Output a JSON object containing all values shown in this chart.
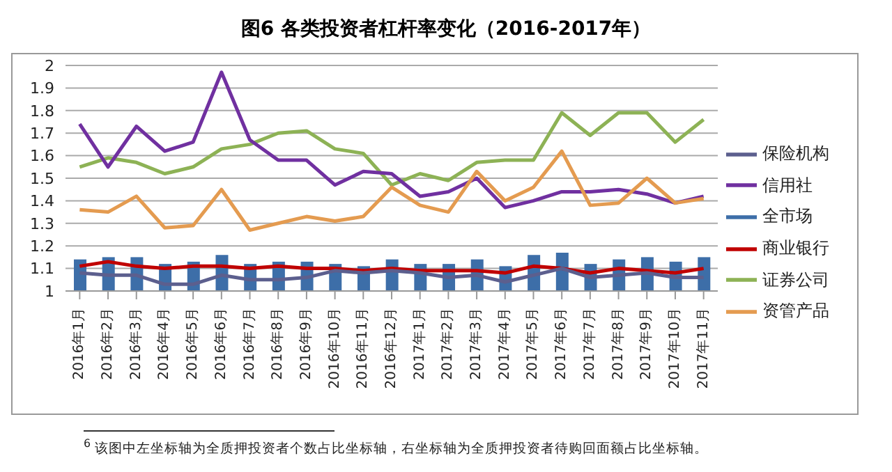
{
  "chart_data": {
    "type": "line",
    "title": "图6 各类投资者杠杆率变化（2016-2017年）",
    "categories": [
      "2016年1月",
      "2016年2月",
      "2016年3月",
      "2016年4月",
      "2016年5月",
      "2016年6月",
      "2016年7月",
      "2016年8月",
      "2016年9月",
      "2016年10月",
      "2016年11月",
      "2016年12月",
      "2017年1月",
      "2017年2月",
      "2017年3月",
      "2017年4月",
      "2017年5月",
      "2017年6月",
      "2017年7月",
      "2017年8月",
      "2017年9月",
      "2017年10月",
      "2017年11月"
    ],
    "series": [
      {
        "name": "全市场",
        "type": "bar",
        "color": "#3d6ea8",
        "values": [
          1.14,
          1.15,
          1.15,
          1.12,
          1.13,
          1.16,
          1.12,
          1.13,
          1.13,
          1.12,
          1.11,
          1.14,
          1.12,
          1.12,
          1.14,
          1.11,
          1.16,
          1.17,
          1.12,
          1.14,
          1.15,
          1.13,
          1.15
        ]
      },
      {
        "name": "商业银行",
        "color": "#c00000",
        "values": [
          1.11,
          1.13,
          1.11,
          1.1,
          1.11,
          1.11,
          1.1,
          1.11,
          1.1,
          1.1,
          1.09,
          1.1,
          1.09,
          1.09,
          1.09,
          1.08,
          1.11,
          1.1,
          1.08,
          1.1,
          1.09,
          1.08,
          1.1
        ]
      },
      {
        "name": "证券公司",
        "color": "#8db255",
        "values": [
          1.55,
          1.59,
          1.57,
          1.52,
          1.55,
          1.63,
          1.65,
          1.7,
          1.71,
          1.63,
          1.61,
          1.47,
          1.52,
          1.49,
          1.57,
          1.58,
          1.58,
          1.79,
          1.69,
          1.79,
          1.79,
          1.66,
          1.76
        ]
      },
      {
        "name": "保险机构",
        "color": "#5c5f8e",
        "values": [
          1.08,
          1.07,
          1.07,
          1.03,
          1.03,
          1.07,
          1.05,
          1.05,
          1.06,
          1.09,
          1.08,
          1.09,
          1.08,
          1.06,
          1.07,
          1.04,
          1.07,
          1.1,
          1.06,
          1.07,
          1.08,
          1.06,
          1.06
        ]
      },
      {
        "name": "信用社",
        "color": "#7030a0",
        "values": [
          1.74,
          1.55,
          1.73,
          1.62,
          1.66,
          1.97,
          1.67,
          1.58,
          1.58,
          1.47,
          1.53,
          1.52,
          1.42,
          1.44,
          1.5,
          1.37,
          1.4,
          1.44,
          1.44,
          1.45,
          1.43,
          1.39,
          1.42
        ]
      },
      {
        "name": "资管产品",
        "color": "#e49b50",
        "values": [
          1.36,
          1.35,
          1.42,
          1.28,
          1.29,
          1.45,
          1.27,
          1.3,
          1.33,
          1.31,
          1.33,
          1.46,
          1.38,
          1.35,
          1.53,
          1.4,
          1.46,
          1.62,
          1.38,
          1.39,
          1.5,
          1.39,
          1.41
        ]
      }
    ],
    "ylim": [
      1,
      2
    ],
    "yticks": [
      1,
      1.1,
      1.2,
      1.3,
      1.4,
      1.5,
      1.6,
      1.7,
      1.8,
      1.9,
      2
    ],
    "grid": "y",
    "legend": "right",
    "marker": "none",
    "line_style": "solid",
    "annotations": [
      "$^{6}$ 该图中左坐标轴为全质押投资者个数占比坐标轴，右坐标轴为全质押投资者待购回面额占比坐标轴。"
    ]
  }
}
